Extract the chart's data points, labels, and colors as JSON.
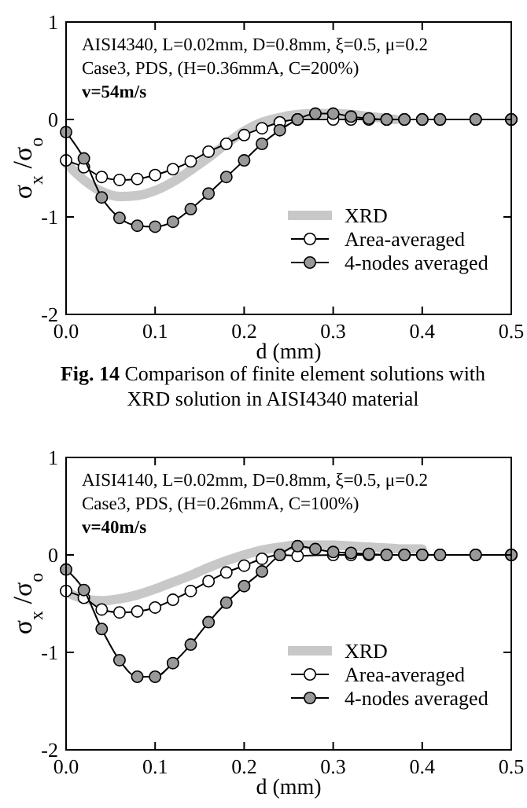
{
  "chart_data": [
    {
      "type": "line",
      "xlabel": "d (mm)",
      "ylabel": "σ$_{x}$ /σ$_{o}$",
      "xlim": [
        0,
        0.5
      ],
      "ylim": [
        -2,
        1
      ],
      "xticks": [
        {
          "value": 0,
          "label": "0.0"
        },
        {
          "value": 0.1,
          "label": "0.1"
        },
        {
          "value": 0.2,
          "label": "0.2"
        },
        {
          "value": 0.3,
          "label": "0.3"
        },
        {
          "value": 0.4,
          "label": "0.4"
        },
        {
          "value": 0.5,
          "label": "0.5"
        }
      ],
      "yticks": [
        -2,
        -1,
        0,
        1
      ],
      "grid": false,
      "legend": "bottom right",
      "annotations": [
        "AISI4340, L=0.02mm, D=0.8mm, ξ=0.5, μ=0.2",
        "Case3, PDS, (H=0.36mmA, C=200%)",
        "v=54m/s",
        "Fig. 14 Comparison of finite element solutions with XRD solution in AISI4340 material"
      ],
      "series": [
        {
          "name": "XRD",
          "color": "#c8c8c8",
          "marker": "none",
          "x": [
            0,
            0.02,
            0.04,
            0.06,
            0.08,
            0.1,
            0.12,
            0.14,
            0.16,
            0.18,
            0.2,
            0.22,
            0.24,
            0.26,
            0.28,
            0.3,
            0.32,
            0.34,
            0.36,
            0.37
          ],
          "values": [
            -0.45,
            -0.62,
            -0.74,
            -0.79,
            -0.78,
            -0.73,
            -0.64,
            -0.52,
            -0.39,
            -0.25,
            -0.12,
            -0.03,
            0.02,
            0.05,
            0.06,
            0.06,
            0.05,
            0.03,
            0.01,
            0.0
          ]
        },
        {
          "name": "Area-averaged",
          "color": "#ffffff",
          "marker": "circle",
          "x": [
            0,
            0.02,
            0.04,
            0.06,
            0.08,
            0.1,
            0.12,
            0.14,
            0.16,
            0.18,
            0.2,
            0.22,
            0.24,
            0.26,
            0.28,
            0.3,
            0.32,
            0.34,
            0.36,
            0.38,
            0.4,
            0.42,
            0.46,
            0.5
          ],
          "values": [
            -0.42,
            -0.49,
            -0.59,
            -0.62,
            -0.61,
            -0.57,
            -0.51,
            -0.43,
            -0.33,
            -0.25,
            -0.16,
            -0.09,
            -0.03,
            0,
            null,
            0,
            0,
            0,
            0,
            0,
            0,
            0,
            0,
            0
          ]
        },
        {
          "name": "4-nodes averaged",
          "color": "#999999",
          "marker": "circle",
          "x": [
            0,
            0.02,
            0.04,
            0.06,
            0.08,
            0.1,
            0.12,
            0.14,
            0.16,
            0.18,
            0.2,
            0.22,
            0.24,
            0.26,
            0.28,
            0.3,
            0.32,
            0.34,
            0.36,
            0.38,
            0.4,
            0.42,
            0.46,
            0.5
          ],
          "values": [
            -0.13,
            -0.4,
            -0.8,
            -1.01,
            -1.09,
            -1.1,
            -1.05,
            -0.92,
            -0.76,
            -0.59,
            -0.42,
            -0.25,
            -0.11,
            0,
            0.06,
            0.06,
            0.03,
            0.01,
            0,
            0,
            0,
            0,
            0,
            0
          ]
        }
      ]
    },
    {
      "type": "line",
      "xlabel": "d (mm)",
      "ylabel": "σ$_{x}$ /σ$_{o}$",
      "xlim": [
        0,
        0.5
      ],
      "ylim": [
        -2,
        1
      ],
      "xticks": [
        {
          "value": 0,
          "label": "0.0"
        },
        {
          "value": 0.1,
          "label": "0.1"
        },
        {
          "value": 0.2,
          "label": "0.2"
        },
        {
          "value": 0.3,
          "label": "0.3"
        },
        {
          "value": 0.4,
          "label": "0.4"
        },
        {
          "value": 0.5,
          "label": "0.5"
        }
      ],
      "yticks": [
        -2,
        -1,
        0,
        1
      ],
      "grid": false,
      "legend": "bottom right",
      "annotations": [
        "AISI4140, L=0.02mm, D=0.8mm, ξ=0.5, μ=0.2",
        "Case3, PDS, (H=0.26mmA, C=100%)",
        "v=40m/s"
      ],
      "series": [
        {
          "name": "XRD",
          "color": "#c8c8c8",
          "marker": "none",
          "x": [
            0,
            0.02,
            0.04,
            0.06,
            0.08,
            0.1,
            0.12,
            0.14,
            0.16,
            0.18,
            0.2,
            0.22,
            0.24,
            0.26,
            0.28,
            0.3,
            0.32,
            0.34,
            0.36,
            0.38,
            0.4
          ],
          "values": [
            -0.38,
            -0.45,
            -0.47,
            -0.45,
            -0.41,
            -0.35,
            -0.28,
            -0.21,
            -0.13,
            -0.06,
            0,
            0.05,
            0.08,
            0.1,
            0.1,
            0.1,
            0.09,
            0.08,
            0.07,
            0.06,
            0.06
          ]
        },
        {
          "name": "Area-averaged",
          "color": "#ffffff",
          "marker": "circle",
          "x": [
            0,
            0.02,
            0.04,
            0.06,
            0.08,
            0.1,
            0.12,
            0.14,
            0.16,
            0.18,
            0.2,
            0.22,
            0.24,
            0.26,
            0.28,
            0.3,
            0.32,
            0.34,
            0.36,
            0.38,
            0.4,
            0.42,
            0.46,
            0.5
          ],
          "values": [
            -0.37,
            -0.44,
            -0.56,
            -0.59,
            -0.58,
            -0.54,
            -0.46,
            -0.37,
            -0.27,
            -0.18,
            -0.11,
            -0.04,
            0,
            -0.01,
            null,
            0,
            0,
            0,
            0,
            0,
            0,
            0,
            0,
            0
          ]
        },
        {
          "name": "4-nodes averaged",
          "color": "#999999",
          "marker": "circle",
          "x": [
            0,
            0.02,
            0.04,
            0.06,
            0.08,
            0.1,
            0.12,
            0.14,
            0.16,
            0.18,
            0.2,
            0.22,
            0.24,
            0.26,
            0.28,
            0.3,
            0.32,
            0.34,
            0.36,
            0.38,
            0.4,
            0.42,
            0.46,
            0.5
          ],
          "values": [
            -0.15,
            -0.36,
            -0.76,
            -1.08,
            -1.25,
            -1.25,
            -1.11,
            -0.92,
            -0.69,
            -0.49,
            -0.32,
            -0.17,
            0,
            0.09,
            0.06,
            0.03,
            0.02,
            0.01,
            0,
            0,
            0,
            0,
            0,
            0
          ]
        }
      ]
    }
  ]
}
